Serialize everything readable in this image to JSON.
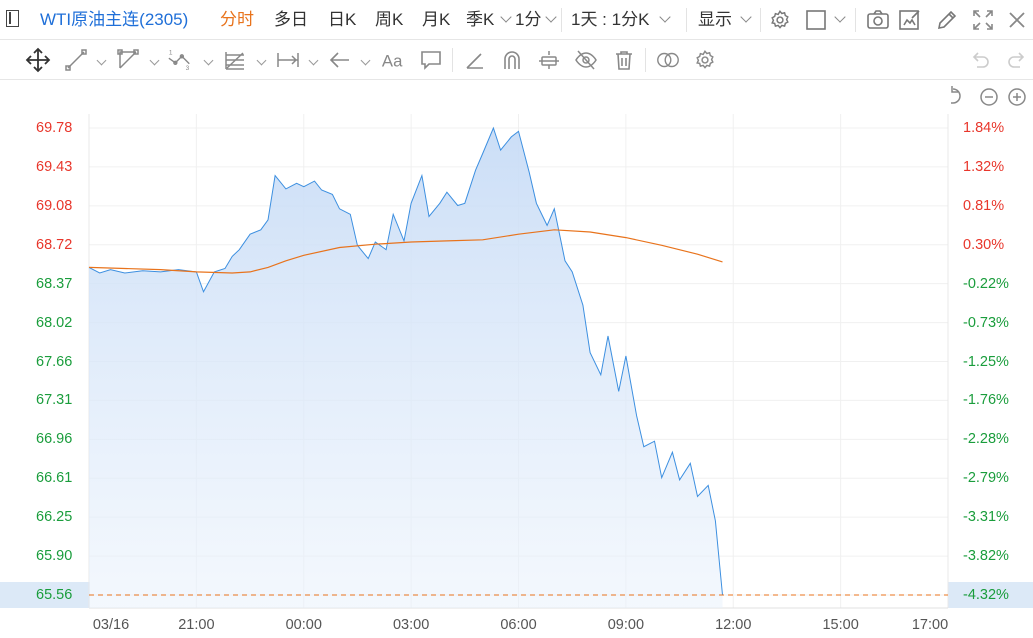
{
  "toolbar": {
    "symbol": "WTI原油主连(2305)",
    "tabs": [
      "分时",
      "多日",
      "日K",
      "周K",
      "月K",
      "季K"
    ],
    "active_tab": "分时",
    "interval": "1分",
    "range": "1天 : 1分K",
    "display": "显示"
  },
  "colors": {
    "up": "#e8362b",
    "down": "#1a9d3c",
    "price_line": "#3c8fe0",
    "avg_line": "#e8731c",
    "symbol": "#1f6fd8"
  },
  "chart_data": {
    "type": "area",
    "title": "",
    "xlabel": "",
    "ylabel": "",
    "x_ticks": [
      "03/16",
      "21:00",
      "00:00",
      "03:00",
      "06:00",
      "09:00",
      "12:00",
      "15:00",
      "17:00"
    ],
    "y_ticks_price": [
      "69.78",
      "69.43",
      "69.08",
      "68.72",
      "68.37",
      "68.02",
      "67.66",
      "67.31",
      "66.96",
      "66.61",
      "66.25",
      "65.90",
      "65.56"
    ],
    "y_ticks_pct": [
      "1.84%",
      "1.32%",
      "0.81%",
      "0.30%",
      "-0.22%",
      "-0.73%",
      "-1.25%",
      "-1.76%",
      "-2.28%",
      "-2.79%",
      "-3.31%",
      "-3.82%",
      "-4.32%"
    ],
    "up_ticks_count": 4,
    "ylim": [
      65.56,
      69.78
    ],
    "session_hours": 24,
    "current_price": 65.56,
    "series": [
      {
        "kind": "price",
        "x": [
          0,
          0.3,
          0.6,
          1.0,
          1.5,
          2.0,
          2.5,
          3.0,
          3.2,
          3.5,
          3.8,
          4.0,
          4.2,
          4.5,
          4.8,
          5.0,
          5.2,
          5.5,
          5.8,
          6.0,
          6.3,
          6.5,
          6.8,
          7.0,
          7.3,
          7.5,
          7.8,
          8.0,
          8.3,
          8.5,
          8.8,
          9.0,
          9.3,
          9.5,
          9.8,
          10.0,
          10.3,
          10.5,
          10.8,
          11.0,
          11.3,
          11.5,
          11.8,
          12.0,
          12.3,
          12.5,
          12.8,
          13.0,
          13.3,
          13.5,
          13.8,
          14.0,
          14.3,
          14.5,
          14.8,
          15.0,
          15.3,
          15.5,
          15.8,
          16.0,
          16.3,
          16.5,
          16.8,
          17.0,
          17.3,
          17.5,
          17.7
        ],
        "y": [
          68.52,
          68.47,
          68.5,
          68.47,
          68.49,
          68.48,
          68.5,
          68.48,
          68.3,
          68.48,
          68.51,
          68.62,
          68.68,
          68.82,
          68.86,
          68.95,
          69.35,
          69.23,
          69.28,
          69.25,
          69.3,
          69.22,
          69.18,
          69.05,
          69.0,
          68.72,
          68.6,
          68.75,
          68.68,
          69.0,
          68.76,
          69.1,
          69.35,
          68.98,
          69.1,
          69.2,
          69.08,
          69.1,
          69.4,
          69.55,
          69.78,
          69.58,
          69.7,
          69.75,
          69.38,
          69.1,
          68.9,
          69.05,
          68.58,
          68.48,
          68.18,
          67.75,
          67.55,
          67.9,
          67.4,
          67.72,
          67.18,
          66.9,
          66.95,
          66.62,
          66.85,
          66.6,
          66.75,
          66.45,
          66.55,
          66.23,
          65.56
        ]
      },
      {
        "kind": "average",
        "x": [
          0,
          1,
          2,
          3,
          4,
          4.5,
          5,
          5.5,
          6,
          7,
          8,
          9,
          10,
          11,
          12,
          13,
          14,
          15,
          16,
          17,
          17.7
        ],
        "y": [
          68.52,
          68.51,
          68.5,
          68.48,
          68.47,
          68.48,
          68.52,
          68.58,
          68.63,
          68.7,
          68.73,
          68.75,
          68.76,
          68.77,
          68.82,
          68.86,
          68.84,
          68.79,
          68.72,
          68.64,
          68.57
        ]
      }
    ]
  }
}
